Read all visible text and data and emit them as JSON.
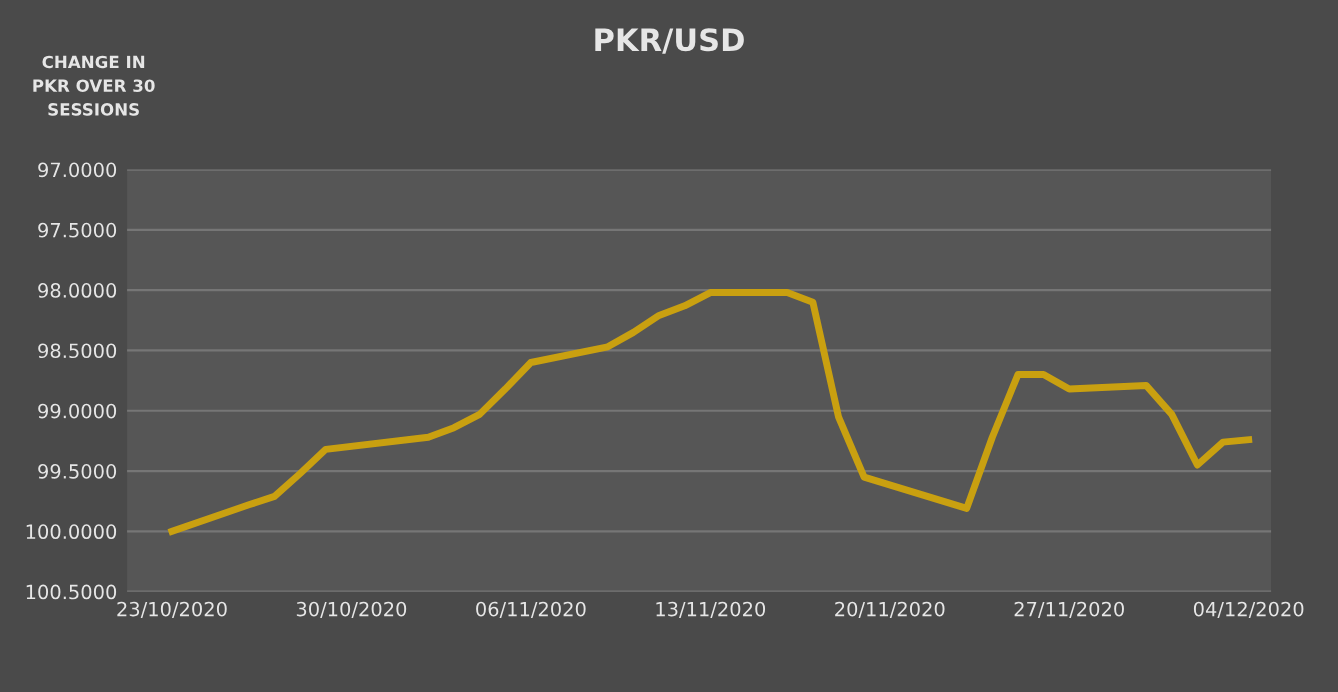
{
  "chart_data": {
    "type": "line",
    "title": "PKR/USD",
    "ylabel": "CHANGE IN\nPKR OVER 30\nSESSIONS",
    "x": [
      "2020-10-23",
      "2020-10-26",
      "2020-10-27",
      "2020-10-28",
      "2020-10-29",
      "2020-11-02",
      "2020-11-03",
      "2020-11-04",
      "2020-11-05",
      "2020-11-06",
      "2020-11-09",
      "2020-11-10",
      "2020-11-11",
      "2020-11-12",
      "2020-11-13",
      "2020-11-16",
      "2020-11-17",
      "2020-11-18",
      "2020-11-19",
      "2020-11-23",
      "2020-11-24",
      "2020-11-25",
      "2020-11-26",
      "2020-11-27",
      "2020-11-30",
      "2020-12-01",
      "2020-12-02",
      "2020-12-03",
      "2020-12-04"
    ],
    "series": [
      {
        "color": "#c9a010",
        "values": [
          100.0,
          99.78,
          99.71,
          99.52,
          99.32,
          99.22,
          99.14,
          99.03,
          98.82,
          98.6,
          98.47,
          98.35,
          98.21,
          98.13,
          98.02,
          98.02,
          98.1,
          99.05,
          99.55,
          99.81,
          99.22,
          98.7,
          98.7,
          98.82,
          98.79,
          99.03,
          99.45,
          99.26,
          99.24
        ]
      }
    ],
    "ylim": [
      100.5,
      97.0
    ],
    "yticks": [
      {
        "value": 97.0,
        "label": "97.0000"
      },
      {
        "value": 97.5,
        "label": "97.5000"
      },
      {
        "value": 98.0,
        "label": "98.0000"
      },
      {
        "value": 98.5,
        "label": "98.5000"
      },
      {
        "value": 99.0,
        "label": "99.0000"
      },
      {
        "value": 99.5,
        "label": "99.5000"
      },
      {
        "value": 100.0,
        "label": "100.0000"
      },
      {
        "value": 100.5,
        "label": "100.5000"
      }
    ],
    "xlim": [
      "2020-10-21T06:00",
      "2020-12-04T21:00"
    ],
    "xticks": [
      {
        "value": "2020-10-23",
        "label": "23/10/2020"
      },
      {
        "value": "2020-10-30",
        "label": "30/10/2020"
      },
      {
        "value": "2020-11-06",
        "label": "06/11/2020"
      },
      {
        "value": "2020-11-13",
        "label": "13/11/2020"
      },
      {
        "value": "2020-11-20",
        "label": "20/11/2020"
      },
      {
        "value": "2020-11-27",
        "label": "27/11/2020"
      },
      {
        "value": "2020-12-04",
        "label": "04/12/2020"
      }
    ],
    "grid": "y",
    "line_style": "solid"
  }
}
